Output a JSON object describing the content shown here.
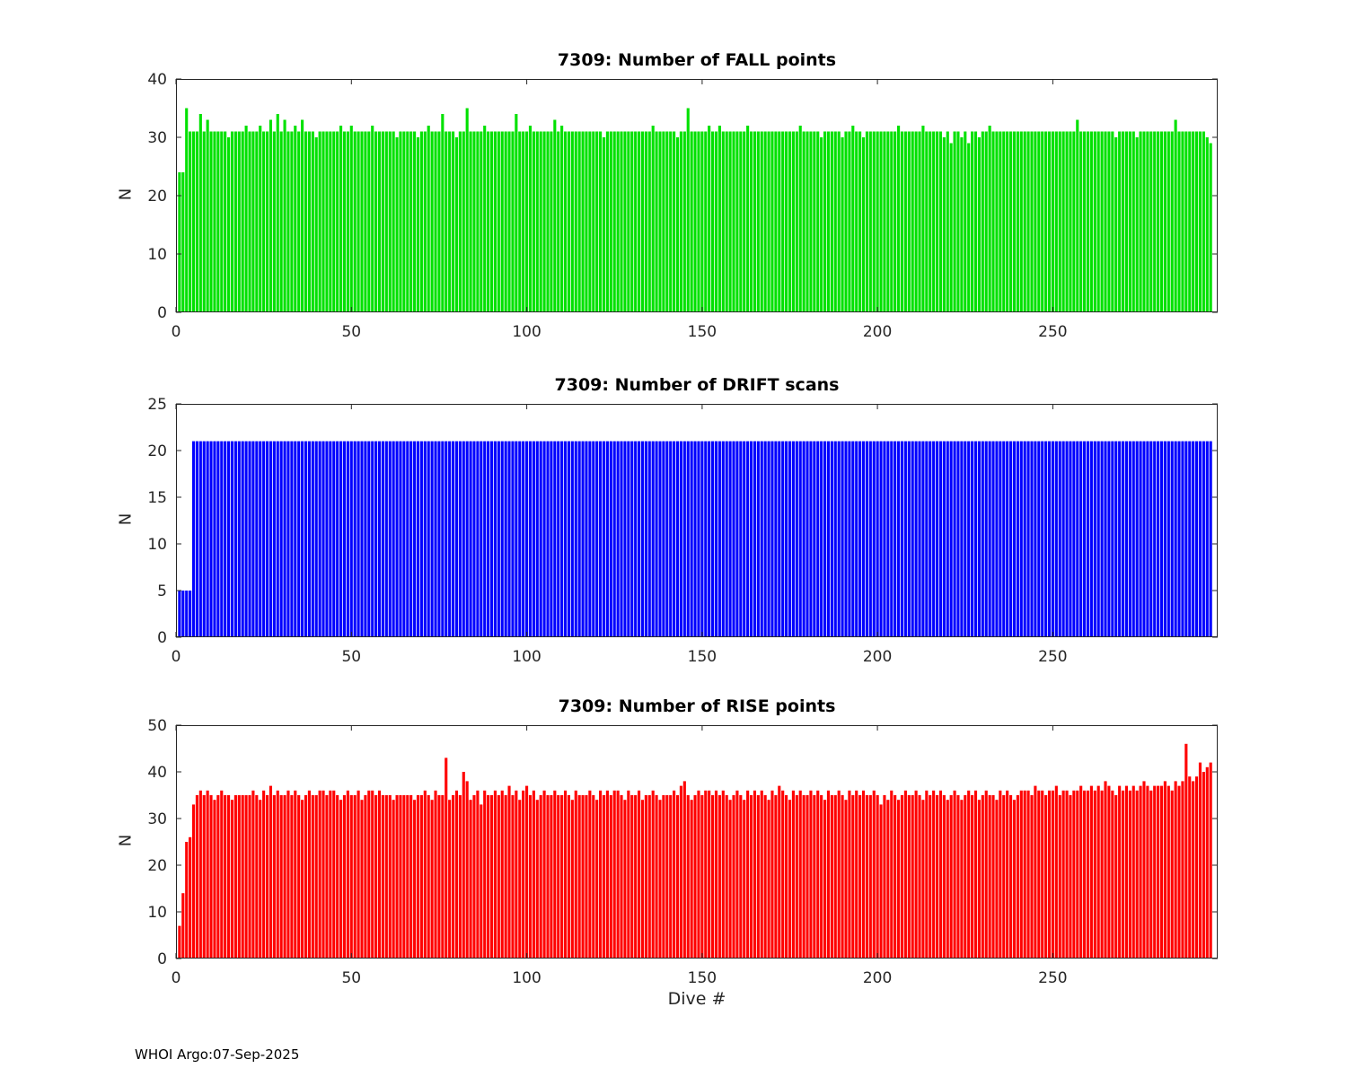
{
  "figure": {
    "background": "#ffffff",
    "footer": "WHOI Argo:07-Sep-2025"
  },
  "chart_data": [
    {
      "type": "bar",
      "title": "7309: Number of FALL points",
      "xlabel": "",
      "ylabel": "N",
      "color": "#00e100",
      "grid": false,
      "legend": null,
      "xlim": [
        0,
        297
      ],
      "ylim": [
        0,
        40
      ],
      "xticks": [
        0,
        50,
        100,
        150,
        200,
        250
      ],
      "yticks": [
        0,
        10,
        20,
        30,
        40
      ],
      "x_start": 1,
      "values": [
        24,
        24,
        35,
        31,
        31,
        31,
        34,
        31,
        33,
        31,
        31,
        31,
        31,
        31,
        30,
        31,
        31,
        31,
        31,
        32,
        31,
        31,
        31,
        32,
        31,
        31,
        33,
        31,
        34,
        31,
        33,
        31,
        31,
        32,
        31,
        33,
        31,
        31,
        31,
        30,
        31,
        31,
        31,
        31,
        31,
        31,
        32,
        31,
        31,
        32,
        31,
        31,
        31,
        31,
        31,
        32,
        31,
        31,
        31,
        31,
        31,
        31,
        30,
        31,
        31,
        31,
        31,
        31,
        30,
        31,
        31,
        32,
        31,
        31,
        31,
        34,
        31,
        31,
        31,
        30,
        31,
        31,
        35,
        31,
        31,
        31,
        31,
        32,
        31,
        31,
        31,
        31,
        31,
        31,
        31,
        31,
        34,
        31,
        31,
        31,
        32,
        31,
        31,
        31,
        31,
        31,
        31,
        33,
        31,
        32,
        31,
        31,
        31,
        31,
        31,
        31,
        31,
        31,
        31,
        31,
        31,
        30,
        31,
        31,
        31,
        31,
        31,
        31,
        31,
        31,
        31,
        31,
        31,
        31,
        31,
        32,
        31,
        31,
        31,
        31,
        31,
        31,
        30,
        31,
        31,
        35,
        31,
        31,
        31,
        31,
        31,
        32,
        31,
        31,
        32,
        31,
        31,
        31,
        31,
        31,
        31,
        31,
        32,
        31,
        31,
        31,
        31,
        31,
        31,
        31,
        31,
        31,
        31,
        31,
        31,
        31,
        31,
        32,
        31,
        31,
        31,
        31,
        31,
        30,
        31,
        31,
        31,
        31,
        31,
        30,
        31,
        31,
        32,
        31,
        31,
        30,
        31,
        31,
        31,
        31,
        31,
        31,
        31,
        31,
        31,
        32,
        31,
        31,
        31,
        31,
        31,
        31,
        32,
        31,
        31,
        31,
        31,
        31,
        30,
        31,
        29,
        31,
        31,
        30,
        31,
        29,
        31,
        31,
        30,
        31,
        31,
        32,
        31,
        31,
        31,
        31,
        31,
        31,
        31,
        31,
        31,
        31,
        31,
        31,
        31,
        31,
        31,
        31,
        31,
        31,
        31,
        31,
        31,
        31,
        31,
        31,
        33,
        31,
        31,
        31,
        31,
        31,
        31,
        31,
        31,
        31,
        31,
        30,
        31,
        31,
        31,
        31,
        31,
        30,
        31,
        31,
        31,
        31,
        31,
        31,
        31,
        31,
        31,
        31,
        33,
        31,
        31,
        31,
        31,
        31,
        31,
        31,
        31,
        30,
        29
      ]
    },
    {
      "type": "bar",
      "title": "7309: Number of DRIFT scans",
      "xlabel": "",
      "ylabel": "N",
      "color": "#0000ff",
      "grid": false,
      "legend": null,
      "xlim": [
        0,
        297
      ],
      "ylim": [
        0,
        25
      ],
      "xticks": [
        0,
        50,
        100,
        150,
        200,
        250
      ],
      "yticks": [
        0,
        5,
        10,
        15,
        20,
        25
      ],
      "x_start": 1,
      "values": [
        5,
        5,
        5,
        5,
        21,
        21,
        21,
        21,
        21,
        21,
        21,
        21,
        21,
        21,
        21,
        21,
        21,
        21,
        21,
        21,
        21,
        21,
        21,
        21,
        21,
        21,
        21,
        21,
        21,
        21,
        21,
        21,
        21,
        21,
        21,
        21,
        21,
        21,
        21,
        21,
        21,
        21,
        21,
        21,
        21,
        21,
        21,
        21,
        21,
        21,
        21,
        21,
        21,
        21,
        21,
        21,
        21,
        21,
        21,
        21,
        21,
        21,
        21,
        21,
        21,
        21,
        21,
        21,
        21,
        21,
        21,
        21,
        21,
        21,
        21,
        21,
        21,
        21,
        21,
        21,
        21,
        21,
        21,
        21,
        21,
        21,
        21,
        21,
        21,
        21,
        21,
        21,
        21,
        21,
        21,
        21,
        21,
        21,
        21,
        21,
        21,
        21,
        21,
        21,
        21,
        21,
        21,
        21,
        21,
        21,
        21,
        21,
        21,
        21,
        21,
        21,
        21,
        21,
        21,
        21,
        21,
        21,
        21,
        21,
        21,
        21,
        21,
        21,
        21,
        21,
        21,
        21,
        21,
        21,
        21,
        21,
        21,
        21,
        21,
        21,
        21,
        21,
        21,
        21,
        21,
        21,
        21,
        21,
        21,
        21,
        21,
        21,
        21,
        21,
        21,
        21,
        21,
        21,
        21,
        21,
        21,
        21,
        21,
        21,
        21,
        21,
        21,
        21,
        21,
        21,
        21,
        21,
        21,
        21,
        21,
        21,
        21,
        21,
        21,
        21,
        21,
        21,
        21,
        21,
        21,
        21,
        21,
        21,
        21,
        21,
        21,
        21,
        21,
        21,
        21,
        21,
        21,
        21,
        21,
        21,
        21,
        21,
        21,
        21,
        21,
        21,
        21,
        21,
        21,
        21,
        21,
        21,
        21,
        21,
        21,
        21,
        21,
        21,
        21,
        21,
        21,
        21,
        21,
        21,
        21,
        21,
        21,
        21,
        21,
        21,
        21,
        21,
        21,
        21,
        21,
        21,
        21,
        21,
        21,
        21,
        21,
        21,
        21,
        21,
        21,
        21,
        21,
        21,
        21,
        21,
        21,
        21,
        21,
        21,
        21,
        21,
        21,
        21,
        21,
        21,
        21,
        21,
        21,
        21,
        21,
        21,
        21,
        21,
        21,
        21,
        21,
        21,
        21,
        21,
        21,
        21,
        21,
        21,
        21,
        21,
        21,
        21,
        21,
        21,
        21,
        21,
        21,
        21,
        21,
        21,
        21,
        21,
        21,
        21,
        21
      ]
    },
    {
      "type": "bar",
      "title": "7309: Number of RISE points",
      "xlabel": "Dive #",
      "ylabel": "N",
      "color": "#ff0000",
      "grid": false,
      "legend": null,
      "xlim": [
        0,
        297
      ],
      "ylim": [
        0,
        50
      ],
      "xticks": [
        0,
        50,
        100,
        150,
        200,
        250
      ],
      "yticks": [
        0,
        10,
        20,
        30,
        40,
        50
      ],
      "x_start": 1,
      "values": [
        7,
        14,
        25,
        26,
        33,
        35,
        36,
        35,
        36,
        35,
        34,
        35,
        36,
        35,
        35,
        34,
        35,
        35,
        35,
        35,
        35,
        36,
        35,
        34,
        36,
        35,
        37,
        35,
        36,
        35,
        35,
        36,
        35,
        36,
        35,
        34,
        35,
        36,
        35,
        35,
        36,
        36,
        35,
        36,
        36,
        35,
        34,
        35,
        36,
        35,
        35,
        36,
        34,
        35,
        36,
        36,
        35,
        36,
        35,
        35,
        35,
        34,
        35,
        35,
        35,
        35,
        35,
        34,
        35,
        35,
        36,
        35,
        34,
        36,
        35,
        35,
        43,
        34,
        35,
        36,
        35,
        40,
        38,
        34,
        35,
        36,
        33,
        36,
        35,
        35,
        36,
        35,
        36,
        35,
        37,
        35,
        36,
        34,
        36,
        37,
        35,
        36,
        34,
        35,
        36,
        35,
        35,
        36,
        35,
        35,
        36,
        35,
        34,
        36,
        35,
        35,
        35,
        36,
        35,
        34,
        36,
        35,
        36,
        35,
        36,
        36,
        35,
        34,
        36,
        35,
        35,
        36,
        34,
        35,
        35,
        36,
        35,
        34,
        35,
        35,
        35,
        36,
        35,
        37,
        38,
        35,
        34,
        35,
        36,
        35,
        36,
        36,
        35,
        36,
        35,
        36,
        35,
        34,
        35,
        36,
        35,
        34,
        36,
        35,
        36,
        35,
        36,
        35,
        34,
        36,
        35,
        37,
        36,
        35,
        34,
        36,
        35,
        36,
        35,
        35,
        36,
        35,
        36,
        35,
        34,
        36,
        35,
        35,
        36,
        35,
        34,
        36,
        35,
        36,
        35,
        36,
        35,
        35,
        36,
        35,
        33,
        35,
        34,
        36,
        35,
        34,
        35,
        36,
        35,
        35,
        36,
        35,
        34,
        36,
        35,
        36,
        35,
        36,
        35,
        34,
        35,
        36,
        35,
        34,
        35,
        36,
        35,
        36,
        34,
        35,
        36,
        35,
        35,
        34,
        36,
        35,
        36,
        35,
        34,
        35,
        36,
        36,
        36,
        35,
        37,
        36,
        36,
        35,
        36,
        36,
        37,
        35,
        36,
        36,
        35,
        36,
        36,
        37,
        36,
        36,
        37,
        36,
        37,
        36,
        38,
        37,
        36,
        35,
        37,
        36,
        37,
        36,
        37,
        36,
        37,
        38,
        37,
        36,
        37,
        37,
        37,
        38,
        37,
        36,
        38,
        37,
        38,
        46,
        39,
        38,
        39,
        42,
        40,
        41,
        42
      ]
    }
  ]
}
